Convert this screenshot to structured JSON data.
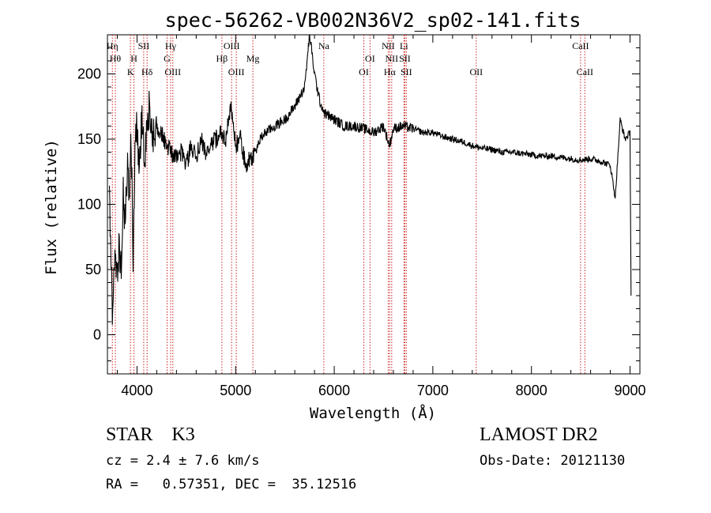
{
  "chart_data": {
    "type": "line",
    "title": "spec-56262-VB002N36V2_sp02-141.fits",
    "xlabel": "Wavelength (Å)",
    "ylabel": "Flux (relative)",
    "xlim": [
      3700,
      9100
    ],
    "ylim": [
      -30,
      230
    ],
    "xticks": [
      4000,
      5000,
      6000,
      7000,
      8000,
      9000
    ],
    "yticks": [
      0,
      50,
      100,
      150,
      200
    ],
    "grid": false,
    "series": [
      {
        "color": "#000000",
        "x": [
          3720,
          3750,
          3780,
          3800,
          3820,
          3840,
          3860,
          3880,
          3900,
          3920,
          3940,
          3960,
          3980,
          4000,
          4020,
          4050,
          4080,
          4100,
          4130,
          4160,
          4200,
          4250,
          4300,
          4350,
          4400,
          4450,
          4500,
          4550,
          4600,
          4650,
          4700,
          4750,
          4800,
          4850,
          4900,
          4950,
          5000,
          5050,
          5100,
          5150,
          5200,
          5250,
          5300,
          5400,
          5500,
          5600,
          5700,
          5750,
          5800,
          5850,
          5900,
          6000,
          6100,
          6200,
          6300,
          6400,
          6500,
          6560,
          6600,
          6700,
          6800,
          6900,
          7000,
          7100,
          7200,
          7300,
          7400,
          7500,
          7600,
          7700,
          7800,
          7900,
          8000,
          8100,
          8200,
          8300,
          8400,
          8500,
          8600,
          8700,
          8800,
          8850,
          8900,
          8950,
          9000,
          9010
        ],
        "y": [
          100,
          20,
          60,
          40,
          70,
          50,
          110,
          80,
          130,
          110,
          150,
          60,
          140,
          160,
          120,
          170,
          130,
          165,
          175,
          150,
          160,
          155,
          145,
          140,
          135,
          140,
          130,
          145,
          135,
          150,
          140,
          145,
          150,
          155,
          150,
          175,
          145,
          150,
          130,
          135,
          140,
          150,
          155,
          160,
          165,
          175,
          190,
          230,
          200,
          180,
          170,
          165,
          160,
          160,
          158,
          155,
          160,
          145,
          158,
          160,
          158,
          155,
          155,
          152,
          150,
          148,
          145,
          143,
          142,
          140,
          140,
          139,
          138,
          137,
          137,
          136,
          135,
          134,
          135,
          133,
          130,
          105,
          165,
          150,
          155,
          30
        ]
      }
    ],
    "lines": [
      {
        "x": 3750,
        "row": 1,
        "label": "Hη"
      },
      {
        "x": 3780,
        "row": 2,
        "label": "Hθ"
      },
      {
        "x": 3934,
        "row": 3,
        "label": "K"
      },
      {
        "x": 3969,
        "row": 2,
        "label": "H"
      },
      {
        "x": 4068,
        "row": 1,
        "label": "SII"
      },
      {
        "x": 4102,
        "row": 3,
        "label": "Hδ"
      },
      {
        "x": 4305,
        "row": 2,
        "label": "G"
      },
      {
        "x": 4341,
        "row": 1,
        "label": "Hγ"
      },
      {
        "x": 4363,
        "row": 3,
        "label": "OIII"
      },
      {
        "x": 4861,
        "row": 2,
        "label": "Hβ"
      },
      {
        "x": 4959,
        "row": 1,
        "label": "OIII"
      },
      {
        "x": 5007,
        "row": 3,
        "label": "OIII"
      },
      {
        "x": 5175,
        "row": 2,
        "label": "Mg"
      },
      {
        "x": 5894,
        "row": 1,
        "label": "Na"
      },
      {
        "x": 6300,
        "row": 3,
        "label": "OI"
      },
      {
        "x": 6363,
        "row": 2,
        "label": "OI"
      },
      {
        "x": 6548,
        "row": 1,
        "label": "NII"
      },
      {
        "x": 6563,
        "row": 3,
        "label": "Hα"
      },
      {
        "x": 6583,
        "row": 2,
        "label": "NII"
      },
      {
        "x": 6707,
        "row": 1,
        "label": "Li"
      },
      {
        "x": 6716,
        "row": 2,
        "label": "SII"
      },
      {
        "x": 6731,
        "row": 3,
        "label": "SII"
      },
      {
        "x": 7440,
        "row": 3,
        "label": "OII"
      },
      {
        "x": 8498,
        "row": 1,
        "label": "CaII"
      },
      {
        "x": 8542,
        "row": 3,
        "label": "CaII"
      }
    ]
  },
  "info": {
    "object": "STAR    K3",
    "survey": "LAMOST DR2",
    "cz": "cz = 2.4 ± 7.6 km/s",
    "obsdate": "Obs-Date: 20121130",
    "radec": "RA =   0.57351, DEC =  35.12516"
  },
  "colors": {
    "axis": "#000000",
    "marker_line": "#cc2020",
    "background": "#ffffff"
  }
}
